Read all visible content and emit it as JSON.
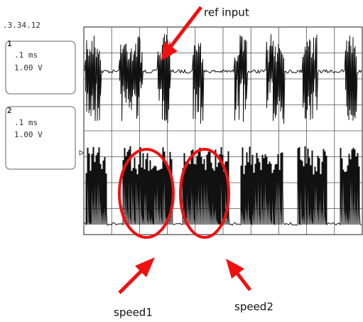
{
  "timestamp": ".3.34.12",
  "channels": [
    {
      "label": "1",
      "timebase": ".1 ms",
      "scale": "1.00 V"
    },
    {
      "label": "2",
      "timebase": ".1 ms",
      "scale": "1.00 V"
    }
  ],
  "annotations": {
    "ref_input": "ref input",
    "speed1": "speed1",
    "speed2": "speed2"
  }
}
